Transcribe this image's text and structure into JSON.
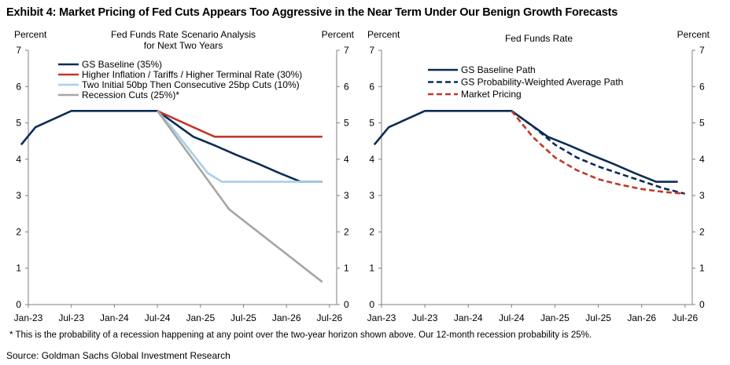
{
  "exhibit_title": "Exhibit 4: Market Pricing of Fed Cuts Appears Too Aggressive in the Near Term Under Our Benign Growth Forecasts",
  "footnote": "* This is the probability of a recession happening at any point over the two-year horizon shown above.  Our 12-month recession probability is 25%.",
  "source": "Source: Goldman Sachs Global Investment Research",
  "colors": {
    "navy": "#0d2c54",
    "red": "#c0392b",
    "lightblue": "#a9cfe8",
    "gray": "#a6a6a6",
    "axis": "#7f7f7f"
  },
  "chart_data": [
    {
      "type": "line",
      "title_lines": [
        "Fed Funds Rate Scenario Analysis",
        "for Next Two Years"
      ],
      "ylabel_left": "Percent",
      "ylabel_right": "Percent",
      "ylim": [
        0,
        7
      ],
      "yticks": [
        0,
        1,
        2,
        3,
        4,
        5,
        6,
        7
      ],
      "xlim": [
        "2023-01",
        "2026-08"
      ],
      "xticks": [
        "Jan-23",
        "Jul-23",
        "Jan-24",
        "Jul-24",
        "Jan-25",
        "Jul-25",
        "Jan-26",
        "Jul-26"
      ],
      "legend_position": "top-left",
      "series": [
        {
          "name": "GS Baseline (35%)",
          "color": "#0d2c54",
          "dash": "solid",
          "points": [
            [
              "2022-12",
              4.4
            ],
            [
              "2023-02",
              4.88
            ],
            [
              "2023-07",
              5.33
            ],
            [
              "2024-07",
              5.33
            ],
            [
              "2024-12",
              4.62
            ],
            [
              "2025-03",
              4.38
            ],
            [
              "2025-06",
              4.12
            ],
            [
              "2025-09",
              3.88
            ],
            [
              "2025-12",
              3.62
            ],
            [
              "2026-03",
              3.38
            ],
            [
              "2026-06",
              3.38
            ]
          ]
        },
        {
          "name": "Higher Inflation / Tariffs / Higher Terminal Rate (30%)",
          "color": "#c0392b",
          "dash": "solid",
          "points": [
            [
              "2024-07",
              5.33
            ],
            [
              "2024-12",
              4.88
            ],
            [
              "2025-03",
              4.62
            ],
            [
              "2026-06",
              4.62
            ]
          ]
        },
        {
          "name": "Two Initial 50bp Then Consecutive 25bp Cuts (10%)",
          "color": "#a9cfe8",
          "dash": "solid",
          "points": [
            [
              "2024-07",
              5.33
            ],
            [
              "2024-09",
              4.88
            ],
            [
              "2024-11",
              4.38
            ],
            [
              "2025-02",
              3.62
            ],
            [
              "2025-04",
              3.38
            ],
            [
              "2026-06",
              3.38
            ]
          ]
        },
        {
          "name": "Recession Cuts (25%)*",
          "color": "#a6a6a6",
          "dash": "solid",
          "points": [
            [
              "2024-07",
              5.33
            ],
            [
              "2025-05",
              2.62
            ],
            [
              "2026-06",
              0.62
            ]
          ]
        }
      ]
    },
    {
      "type": "line",
      "title_lines": [
        "Fed Funds Rate"
      ],
      "ylabel_left": "Percent",
      "ylabel_right": "Percent",
      "ylim": [
        0,
        7
      ],
      "yticks": [
        0,
        1,
        2,
        3,
        4,
        5,
        6,
        7
      ],
      "xlim": [
        "2023-01",
        "2026-08"
      ],
      "xticks": [
        "Jan-23",
        "Jul-23",
        "Jan-24",
        "Jul-24",
        "Jan-25",
        "Jul-25",
        "Jan-26",
        "Jul-26"
      ],
      "legend_position": "top-left",
      "series": [
        {
          "name": "GS Baseline Path",
          "color": "#0d2c54",
          "dash": "solid",
          "points": [
            [
              "2022-12",
              4.4
            ],
            [
              "2023-02",
              4.88
            ],
            [
              "2023-07",
              5.33
            ],
            [
              "2024-07",
              5.33
            ],
            [
              "2024-12",
              4.62
            ],
            [
              "2025-03",
              4.38
            ],
            [
              "2025-06",
              4.12
            ],
            [
              "2025-09",
              3.88
            ],
            [
              "2025-12",
              3.62
            ],
            [
              "2026-03",
              3.38
            ],
            [
              "2026-06",
              3.38
            ]
          ]
        },
        {
          "name": "GS Probability-Weighted Average Path",
          "color": "#0d2c54",
          "dash": "dashed",
          "points": [
            [
              "2024-07",
              5.33
            ],
            [
              "2024-10",
              4.9
            ],
            [
              "2025-01",
              4.4
            ],
            [
              "2025-04",
              4.05
            ],
            [
              "2025-07",
              3.8
            ],
            [
              "2025-10",
              3.6
            ],
            [
              "2026-01",
              3.4
            ],
            [
              "2026-04",
              3.2
            ],
            [
              "2026-07",
              3.05
            ]
          ]
        },
        {
          "name": "Market Pricing",
          "color": "#c0392b",
          "dash": "dashed",
          "points": [
            [
              "2024-07",
              5.33
            ],
            [
              "2024-10",
              4.6
            ],
            [
              "2025-01",
              4.05
            ],
            [
              "2025-04",
              3.7
            ],
            [
              "2025-07",
              3.45
            ],
            [
              "2025-10",
              3.3
            ],
            [
              "2026-01",
              3.18
            ],
            [
              "2026-04",
              3.1
            ],
            [
              "2026-07",
              3.05
            ]
          ]
        }
      ]
    }
  ]
}
